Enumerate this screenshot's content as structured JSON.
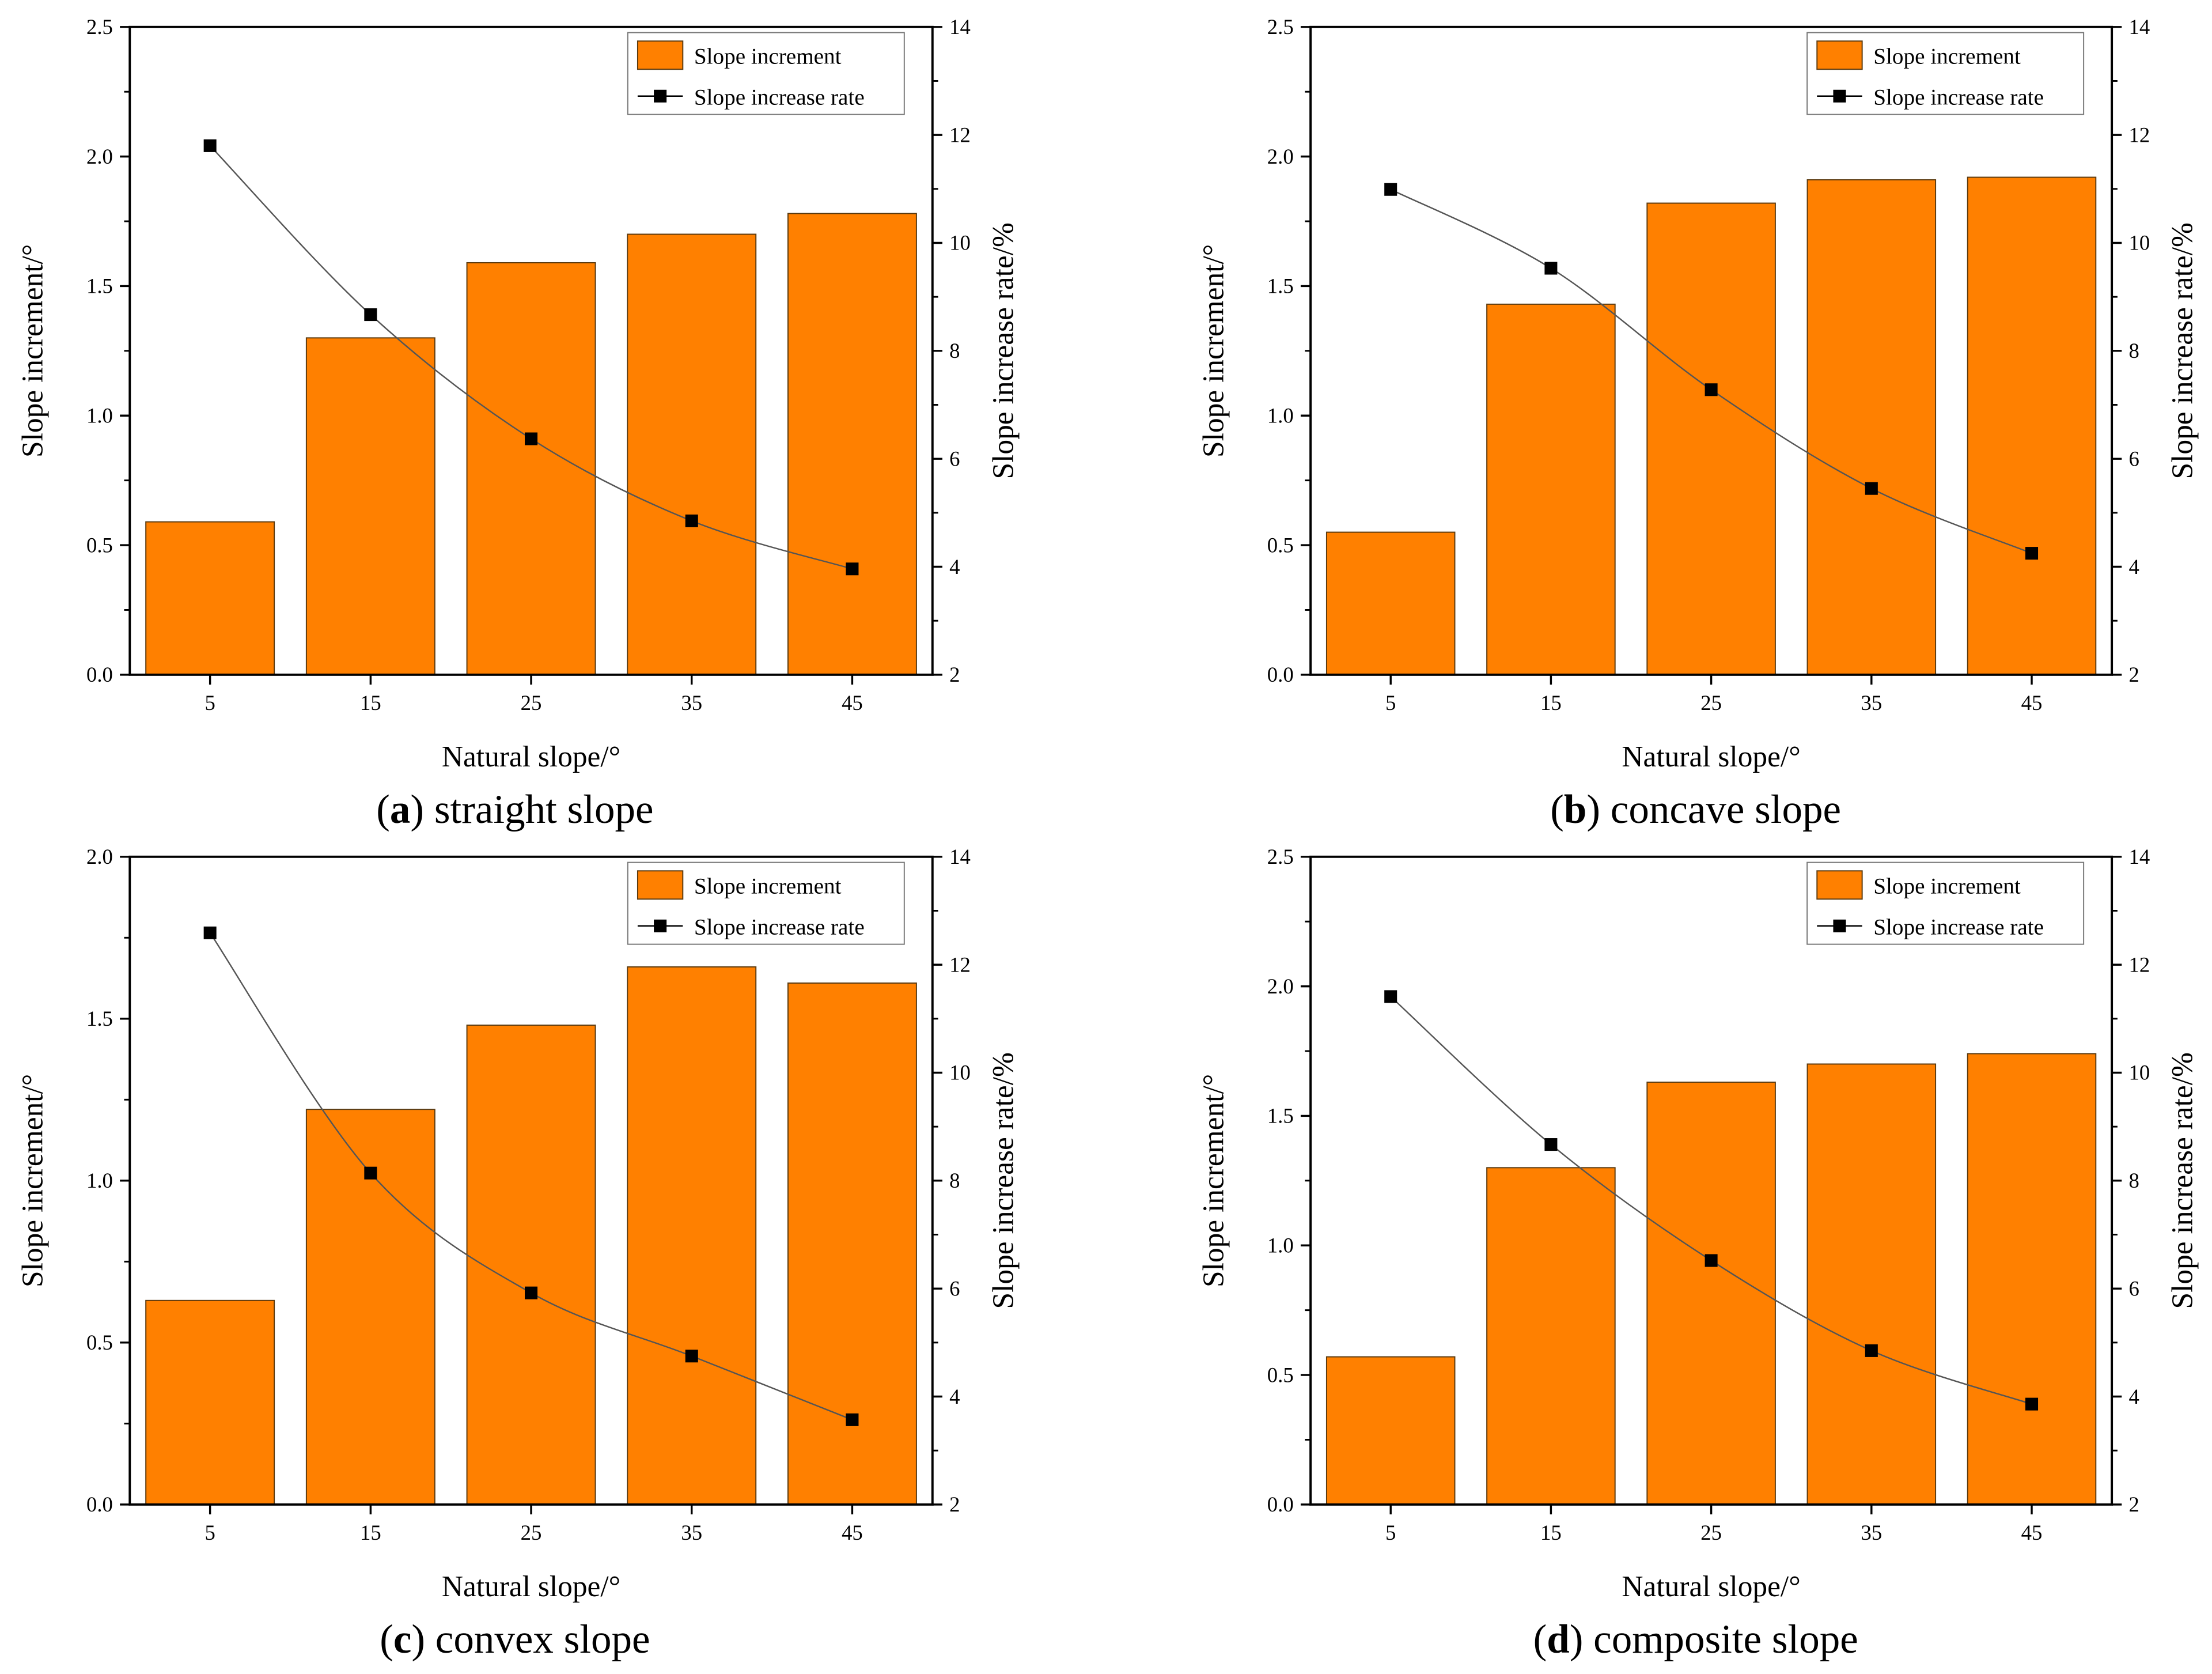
{
  "colors": {
    "bar": "#FF8000",
    "bar_edge": "#5a3a10",
    "line": "#555555",
    "marker": "#000000"
  },
  "chart_data": [
    {
      "type": "bar+line",
      "caption_letter": "a",
      "caption_text": " straight slope",
      "xlabel": "Natural slope/°",
      "ylabel": "Slope increment/°",
      "y2label": "Slope increase rate/%",
      "categories": [
        "5",
        "15",
        "25",
        "35",
        "45"
      ],
      "x": [
        5,
        15,
        25,
        35,
        45
      ],
      "xlim": [
        0,
        50
      ],
      "ylim": [
        0,
        2.5
      ],
      "yticks": [
        "0.0",
        "0.5",
        "1.0",
        "1.5",
        "2.0",
        "2.5"
      ],
      "y2lim": [
        2,
        14
      ],
      "y2ticks": [
        "2",
        "4",
        "6",
        "8",
        "10",
        "12",
        "14"
      ],
      "legend": [
        "Slope increment",
        "Slope increase rate"
      ],
      "legend_position": "top-right",
      "series": [
        {
          "name": "Slope increment",
          "axis": "left",
          "kind": "bar",
          "values": [
            0.59,
            1.3,
            1.59,
            1.7,
            1.78
          ]
        },
        {
          "name": "Slope increase rate",
          "axis": "right",
          "kind": "line",
          "values": [
            11.8,
            8.67,
            6.37,
            4.85,
            3.96
          ]
        }
      ]
    },
    {
      "type": "bar+line",
      "caption_letter": "b",
      "caption_text": " concave slope",
      "xlabel": "Natural slope/°",
      "ylabel": "Slope increment/°",
      "y2label": "Slope increase rate/%",
      "categories": [
        "5",
        "15",
        "25",
        "35",
        "45"
      ],
      "x": [
        5,
        15,
        25,
        35,
        45
      ],
      "xlim": [
        0,
        50
      ],
      "ylim": [
        0,
        2.5
      ],
      "yticks": [
        "0.0",
        "0.5",
        "1.0",
        "1.5",
        "2.0",
        "2.5"
      ],
      "y2lim": [
        2,
        14
      ],
      "y2ticks": [
        "2",
        "4",
        "6",
        "8",
        "10",
        "12",
        "14"
      ],
      "legend": [
        "Slope increment",
        "Slope increase rate"
      ],
      "legend_position": "top-right",
      "series": [
        {
          "name": "Slope increment",
          "axis": "left",
          "kind": "bar",
          "values": [
            0.55,
            1.43,
            1.82,
            1.91,
            1.92
          ]
        },
        {
          "name": "Slope increase rate",
          "axis": "right",
          "kind": "line",
          "values": [
            10.99,
            9.53,
            7.28,
            5.45,
            4.25
          ]
        }
      ]
    },
    {
      "type": "bar+line",
      "caption_letter": "c",
      "caption_text": " convex slope",
      "xlabel": "Natural slope/°",
      "ylabel": "Slope increment/°",
      "y2label": "Slope increase rate/%",
      "categories": [
        "5",
        "15",
        "25",
        "35",
        "45"
      ],
      "x": [
        5,
        15,
        25,
        35,
        45
      ],
      "xlim": [
        0,
        50
      ],
      "ylim": [
        0,
        2.0
      ],
      "yticks": [
        "0.0",
        "0.5",
        "1.0",
        "1.5",
        "2.0"
      ],
      "y2lim": [
        2,
        14
      ],
      "y2ticks": [
        "2",
        "4",
        "6",
        "8",
        "10",
        "12",
        "14"
      ],
      "legend": [
        "Slope increment",
        "Slope increase rate"
      ],
      "legend_position": "top-right",
      "series": [
        {
          "name": "Slope increment",
          "axis": "left",
          "kind": "bar",
          "values": [
            0.63,
            1.22,
            1.48,
            1.66,
            1.61
          ]
        },
        {
          "name": "Slope increase rate",
          "axis": "right",
          "kind": "line",
          "values": [
            12.59,
            8.14,
            5.92,
            4.75,
            3.57
          ]
        }
      ]
    },
    {
      "type": "bar+line",
      "caption_letter": "d",
      "caption_text": " composite slope",
      "xlabel": "Natural slope/°",
      "ylabel": "Slope increment/°",
      "y2label": "Slope increase rate/%",
      "categories": [
        "5",
        "15",
        "25",
        "35",
        "45"
      ],
      "x": [
        5,
        15,
        25,
        35,
        45
      ],
      "xlim": [
        0,
        50
      ],
      "ylim": [
        0,
        2.5
      ],
      "yticks": [
        "0.0",
        "0.5",
        "1.0",
        "1.5",
        "2.0",
        "2.5"
      ],
      "y2lim": [
        2,
        14
      ],
      "y2ticks": [
        "2",
        "4",
        "6",
        "8",
        "10",
        "12",
        "14"
      ],
      "legend": [
        "Slope increment",
        "Slope increase rate"
      ],
      "legend_position": "top-right",
      "series": [
        {
          "name": "Slope increment",
          "axis": "left",
          "kind": "bar",
          "values": [
            0.57,
            1.3,
            1.63,
            1.7,
            1.74
          ]
        },
        {
          "name": "Slope increase rate",
          "axis": "right",
          "kind": "line",
          "values": [
            11.41,
            8.67,
            6.52,
            4.85,
            3.86
          ]
        }
      ]
    }
  ]
}
